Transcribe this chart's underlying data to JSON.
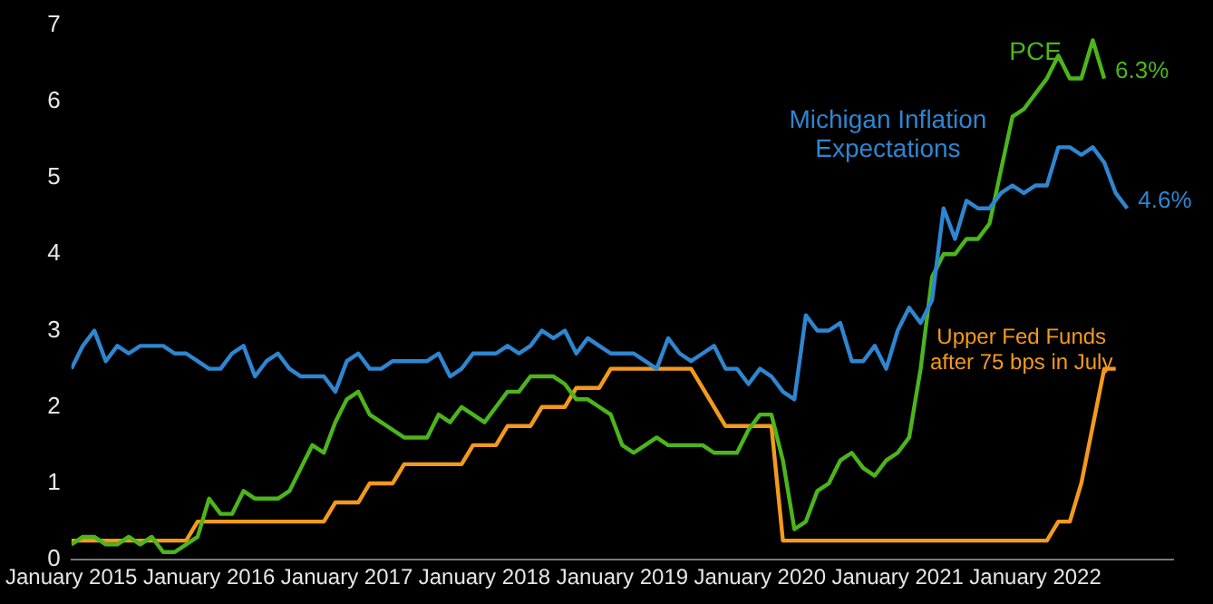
{
  "chart_data": {
    "type": "line",
    "x": [
      "2015-01",
      "2015-02",
      "2015-03",
      "2015-04",
      "2015-05",
      "2015-06",
      "2015-07",
      "2015-08",
      "2015-09",
      "2015-10",
      "2015-11",
      "2015-12",
      "2016-01",
      "2016-02",
      "2016-03",
      "2016-04",
      "2016-05",
      "2016-06",
      "2016-07",
      "2016-08",
      "2016-09",
      "2016-10",
      "2016-11",
      "2016-12",
      "2017-01",
      "2017-02",
      "2017-03",
      "2017-04",
      "2017-05",
      "2017-06",
      "2017-07",
      "2017-08",
      "2017-09",
      "2017-10",
      "2017-11",
      "2017-12",
      "2018-01",
      "2018-02",
      "2018-03",
      "2018-04",
      "2018-05",
      "2018-06",
      "2018-07",
      "2018-08",
      "2018-09",
      "2018-10",
      "2018-11",
      "2018-12",
      "2019-01",
      "2019-02",
      "2019-03",
      "2019-04",
      "2019-05",
      "2019-06",
      "2019-07",
      "2019-08",
      "2019-09",
      "2019-10",
      "2019-11",
      "2019-12",
      "2020-01",
      "2020-02",
      "2020-03",
      "2020-04",
      "2020-05",
      "2020-06",
      "2020-07",
      "2020-08",
      "2020-09",
      "2020-10",
      "2020-11",
      "2020-12",
      "2021-01",
      "2021-02",
      "2021-03",
      "2021-04",
      "2021-05",
      "2021-06",
      "2021-07",
      "2021-08",
      "2021-09",
      "2021-10",
      "2021-11",
      "2021-12",
      "2022-01",
      "2022-02",
      "2022-03",
      "2022-04",
      "2022-05",
      "2022-06",
      "2022-07",
      "2022-08",
      "2022-09"
    ],
    "xlim": [
      "2015-01",
      "2023-01"
    ],
    "xticks": [
      {
        "value": "2015-01",
        "label": "January 2015"
      },
      {
        "value": "2016-01",
        "label": "January 2016"
      },
      {
        "value": "2017-01",
        "label": "January 2017"
      },
      {
        "value": "2018-01",
        "label": "January 2018"
      },
      {
        "value": "2019-01",
        "label": "January 2019"
      },
      {
        "value": "2020-01",
        "label": "January 2020"
      },
      {
        "value": "2021-01",
        "label": "January 2021"
      },
      {
        "value": "2022-01",
        "label": "January 2022"
      }
    ],
    "ylim": [
      0,
      7
    ],
    "yticks": [
      0,
      1,
      2,
      3,
      4,
      5,
      6,
      7
    ],
    "grid": false,
    "legend": false,
    "marker": "none",
    "line_style": "solid",
    "series": [
      {
        "name": "Michigan Inflation Expectations",
        "color": "#2e86d1",
        "values": [
          2.5,
          2.8,
          3.0,
          2.6,
          2.8,
          2.7,
          2.8,
          2.8,
          2.8,
          2.7,
          2.7,
          2.6,
          2.5,
          2.5,
          2.7,
          2.8,
          2.4,
          2.6,
          2.7,
          2.5,
          2.4,
          2.4,
          2.4,
          2.2,
          2.6,
          2.7,
          2.5,
          2.5,
          2.6,
          2.6,
          2.6,
          2.6,
          2.7,
          2.4,
          2.5,
          2.7,
          2.7,
          2.7,
          2.8,
          2.7,
          2.8,
          3.0,
          2.9,
          3.0,
          2.7,
          2.9,
          2.8,
          2.7,
          2.7,
          2.7,
          2.6,
          2.5,
          2.9,
          2.7,
          2.6,
          2.7,
          2.8,
          2.5,
          2.5,
          2.3,
          2.5,
          2.4,
          2.2,
          2.1,
          3.2,
          3.0,
          3.0,
          3.1,
          2.6,
          2.6,
          2.8,
          2.5,
          3.0,
          3.3,
          3.1,
          3.4,
          4.6,
          4.2,
          4.7,
          4.6,
          4.6,
          4.8,
          4.9,
          4.8,
          4.9,
          4.9,
          5.4,
          5.4,
          5.3,
          5.4,
          5.2,
          4.8,
          4.6
        ]
      },
      {
        "name": "PCE",
        "color": "#4cb51c",
        "values": [
          0.2,
          0.3,
          0.3,
          0.2,
          0.2,
          0.3,
          0.2,
          0.3,
          0.1,
          0.1,
          0.2,
          0.3,
          0.8,
          0.6,
          0.6,
          0.9,
          0.8,
          0.8,
          0.8,
          0.9,
          1.2,
          1.5,
          1.4,
          1.8,
          2.1,
          2.2,
          1.9,
          1.8,
          1.7,
          1.6,
          1.6,
          1.6,
          1.9,
          1.8,
          2.0,
          1.9,
          1.8,
          2.0,
          2.2,
          2.2,
          2.4,
          2.4,
          2.4,
          2.3,
          2.1,
          2.1,
          2.0,
          1.9,
          1.5,
          1.4,
          1.5,
          1.6,
          1.5,
          1.5,
          1.5,
          1.5,
          1.4,
          1.4,
          1.4,
          1.7,
          1.9,
          1.9,
          1.3,
          0.4,
          0.5,
          0.9,
          1.0,
          1.3,
          1.4,
          1.2,
          1.1,
          1.3,
          1.4,
          1.6,
          2.5,
          3.7,
          4.0,
          4.0,
          4.2,
          4.2,
          4.4,
          5.1,
          5.8,
          5.9,
          6.1,
          6.3,
          6.6,
          6.3,
          6.3,
          6.8,
          6.3,
          null,
          null
        ]
      },
      {
        "name": "Upper Fed Funds after 75 bps in July",
        "color": "#f39a1c",
        "values": [
          0.25,
          0.25,
          0.25,
          0.25,
          0.25,
          0.25,
          0.25,
          0.25,
          0.25,
          0.25,
          0.25,
          0.5,
          0.5,
          0.5,
          0.5,
          0.5,
          0.5,
          0.5,
          0.5,
          0.5,
          0.5,
          0.5,
          0.5,
          0.75,
          0.75,
          0.75,
          1.0,
          1.0,
          1.0,
          1.25,
          1.25,
          1.25,
          1.25,
          1.25,
          1.25,
          1.5,
          1.5,
          1.5,
          1.75,
          1.75,
          1.75,
          2.0,
          2.0,
          2.0,
          2.25,
          2.25,
          2.25,
          2.5,
          2.5,
          2.5,
          2.5,
          2.5,
          2.5,
          2.5,
          2.5,
          2.25,
          2.0,
          1.75,
          1.75,
          1.75,
          1.75,
          1.75,
          0.25,
          0.25,
          0.25,
          0.25,
          0.25,
          0.25,
          0.25,
          0.25,
          0.25,
          0.25,
          0.25,
          0.25,
          0.25,
          0.25,
          0.25,
          0.25,
          0.25,
          0.25,
          0.25,
          0.25,
          0.25,
          0.25,
          0.25,
          0.25,
          0.5,
          0.5,
          1.0,
          1.75,
          2.5,
          2.5,
          null
        ]
      }
    ],
    "annotations": [
      {
        "text": "6.3%",
        "x": "2022-07",
        "y": 6.3
      },
      {
        "text": "4.6%",
        "x": "2022-09",
        "y": 4.6
      }
    ]
  }
}
